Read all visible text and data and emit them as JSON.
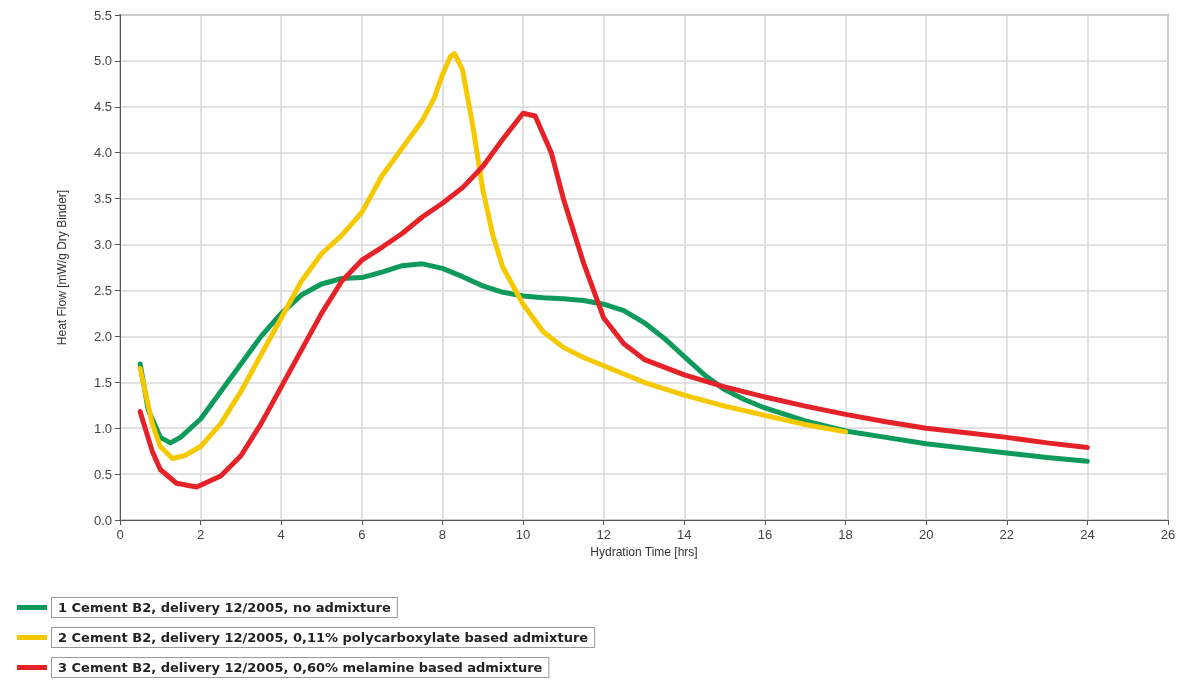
{
  "chart_data": {
    "type": "line",
    "xlabel": "Hydration Time [hrs]",
    "ylabel": "Heat Flow [mW/g Dry Binder]",
    "xlim": [
      0,
      26
    ],
    "xticks": [
      0,
      2,
      4,
      6,
      8,
      10,
      12,
      14,
      16,
      18,
      20,
      22,
      24,
      26
    ],
    "ylim": [
      0,
      5.5
    ],
    "yticks": [
      {
        "value": 0,
        "label": "0.0"
      },
      0.5,
      {
        "value": 1,
        "label": "1.0"
      },
      1.5,
      {
        "value": 2,
        "label": "2.0"
      },
      2.5,
      {
        "value": 3,
        "label": "3.0"
      },
      3.5,
      {
        "value": 4,
        "label": "4.0"
      },
      4.5,
      {
        "value": 5,
        "label": "5.0"
      },
      5.5
    ],
    "grid": true,
    "legend": "bottom",
    "marker": "none",
    "line_style": "solid",
    "series": [
      {
        "name": "1 Cement B2, delivery 12/2005, no admixture",
        "color": "#0e9a5a",
        "x": [
          0.5,
          0.7,
          1.0,
          1.25,
          1.5,
          2,
          2.5,
          3,
          3.5,
          4,
          4.5,
          5,
          5.5,
          6,
          6.5,
          7,
          7.5,
          8,
          8.5,
          9,
          9.5,
          10,
          10.5,
          11,
          11.5,
          12,
          12.5,
          13,
          13.5,
          14,
          14.5,
          15,
          15.5,
          16,
          17,
          18,
          19,
          20,
          21,
          22,
          23,
          24
        ],
        "values": [
          1.7,
          1.2,
          0.9,
          0.84,
          0.9,
          1.1,
          1.4,
          1.7,
          2.0,
          2.25,
          2.45,
          2.57,
          2.63,
          2.64,
          2.7,
          2.77,
          2.79,
          2.74,
          2.65,
          2.55,
          2.48,
          2.44,
          2.42,
          2.41,
          2.39,
          2.35,
          2.28,
          2.15,
          1.98,
          1.78,
          1.58,
          1.42,
          1.31,
          1.22,
          1.08,
          0.97,
          0.9,
          0.83,
          0.78,
          0.73,
          0.68,
          0.64
        ]
      },
      {
        "name": "2 Cement B2, delivery 12/2005, 0,11% polycarboxylate based admixture",
        "color": "#f5c800",
        "x": [
          0.5,
          0.8,
          1.0,
          1.3,
          1.6,
          2,
          2.5,
          3,
          3.5,
          4,
          4.5,
          5,
          5.5,
          6,
          6.5,
          7,
          7.5,
          7.8,
          8,
          8.2,
          8.3,
          8.5,
          8.75,
          9,
          9.25,
          9.5,
          10,
          10.5,
          11,
          11.5,
          12,
          13,
          14,
          15,
          16,
          17,
          18
        ],
        "values": [
          1.65,
          1.05,
          0.8,
          0.67,
          0.7,
          0.8,
          1.05,
          1.4,
          1.8,
          2.2,
          2.6,
          2.9,
          3.1,
          3.35,
          3.75,
          4.05,
          4.35,
          4.6,
          4.85,
          5.05,
          5.08,
          4.9,
          4.3,
          3.6,
          3.1,
          2.75,
          2.35,
          2.05,
          1.88,
          1.77,
          1.68,
          1.5,
          1.36,
          1.24,
          1.14,
          1.04,
          0.96
        ]
      },
      {
        "name": "3 Cement B2, delivery 12/2005, 0,60% melamine based admixture",
        "color": "#e52228",
        "x": [
          0.5,
          0.8,
          1.0,
          1.4,
          1.9,
          2.5,
          3,
          3.5,
          4,
          4.5,
          5,
          5.5,
          6,
          6.5,
          7,
          7.5,
          8,
          8.5,
          9,
          9.5,
          10,
          10.3,
          10.7,
          11,
          11.5,
          12,
          12.5,
          13,
          14,
          15,
          16,
          17,
          18,
          19,
          20,
          21,
          22,
          23,
          24
        ],
        "values": [
          1.18,
          0.75,
          0.55,
          0.4,
          0.36,
          0.48,
          0.7,
          1.05,
          1.45,
          1.85,
          2.25,
          2.6,
          2.83,
          2.97,
          3.12,
          3.3,
          3.45,
          3.62,
          3.85,
          4.15,
          4.43,
          4.4,
          4.0,
          3.5,
          2.8,
          2.2,
          1.92,
          1.75,
          1.58,
          1.45,
          1.34,
          1.24,
          1.15,
          1.07,
          1.0,
          0.95,
          0.9,
          0.84,
          0.79
        ]
      }
    ]
  }
}
